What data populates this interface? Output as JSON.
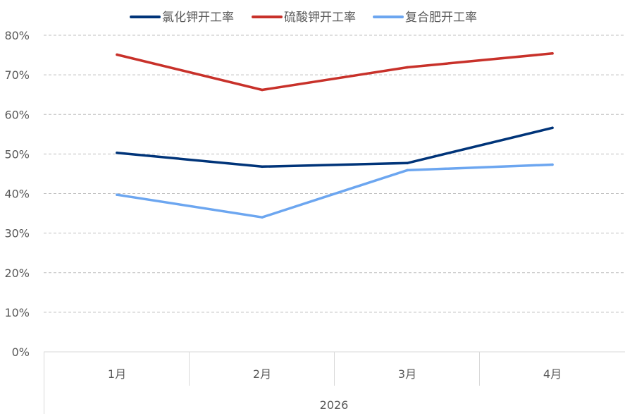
{
  "chart_data": {
    "type": "line",
    "categories": [
      "1月",
      "2月",
      "3月",
      "4月"
    ],
    "group_label": "2026",
    "series": [
      {
        "name": "氯化钾开工率",
        "color": "#003479",
        "values": [
          50.3,
          46.8,
          47.7,
          56.6
        ]
      },
      {
        "name": "硫酸钾开工率",
        "color": "#C8312A",
        "values": [
          75.1,
          66.2,
          71.9,
          75.4
        ]
      },
      {
        "name": "复合肥开工率",
        "color": "#6CA6F0",
        "values": [
          39.7,
          34.0,
          45.9,
          47.3
        ]
      }
    ],
    "yticks": [
      "0%",
      "10%",
      "20%",
      "30%",
      "40%",
      "50%",
      "60%",
      "70%",
      "80%"
    ],
    "ylim": [
      0,
      80
    ],
    "grid": true,
    "legend_position": "top"
  }
}
